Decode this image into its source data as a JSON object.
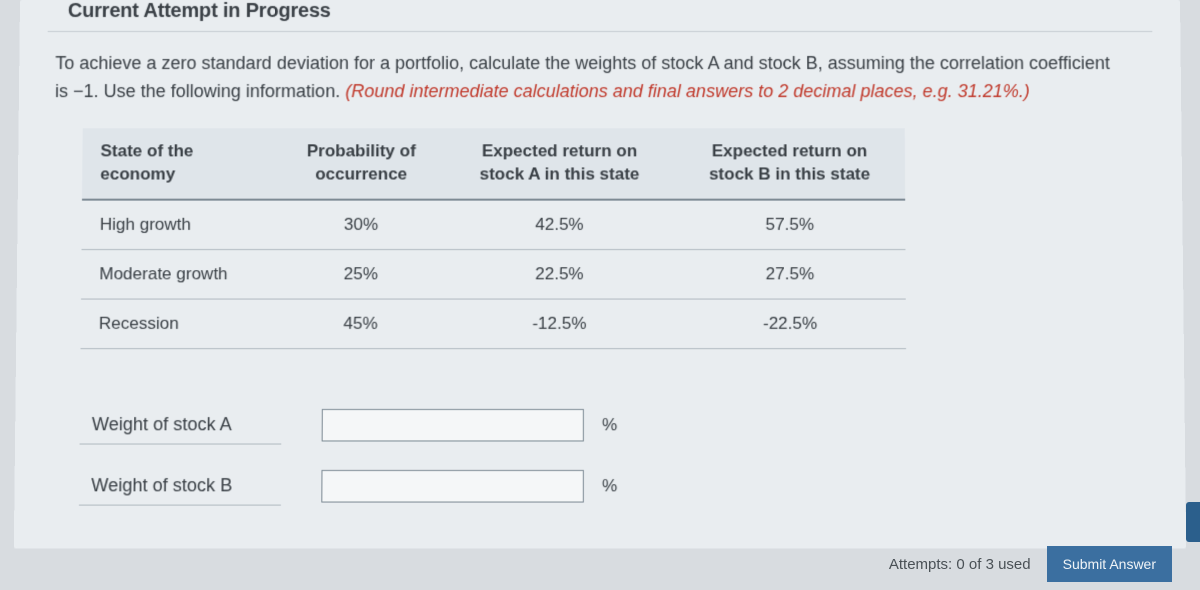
{
  "section_title": "Current Attempt in Progress",
  "question": {
    "line1": "To achieve a zero standard deviation for a portfolio, calculate the weights of stock A and stock B, assuming the correlation coefficient",
    "line2a": "is −1. Use the following information. ",
    "hint": "(Round intermediate calculations and final answers to 2 decimal places, e.g. 31.21%.)"
  },
  "table": {
    "headers": {
      "state": "State of the\neconomy",
      "prob": "Probability of\noccurrence",
      "retA": "Expected return on\nstock A in this state",
      "retB": "Expected return on\nstock B in this state"
    },
    "rows": [
      {
        "state": "High growth",
        "prob": "30%",
        "retA": "42.5%",
        "retB": "57.5%"
      },
      {
        "state": "Moderate growth",
        "prob": "25%",
        "retA": "22.5%",
        "retB": "27.5%"
      },
      {
        "state": "Recession",
        "prob": "45%",
        "retA": "-12.5%",
        "retB": "-22.5%"
      }
    ]
  },
  "answers": {
    "weightA_label": "Weight of stock A",
    "weightB_label": "Weight of stock B",
    "unit": "%"
  },
  "footer": {
    "attempts": "Attempts: 0 of 3 used",
    "submit": "Submit Answer"
  }
}
